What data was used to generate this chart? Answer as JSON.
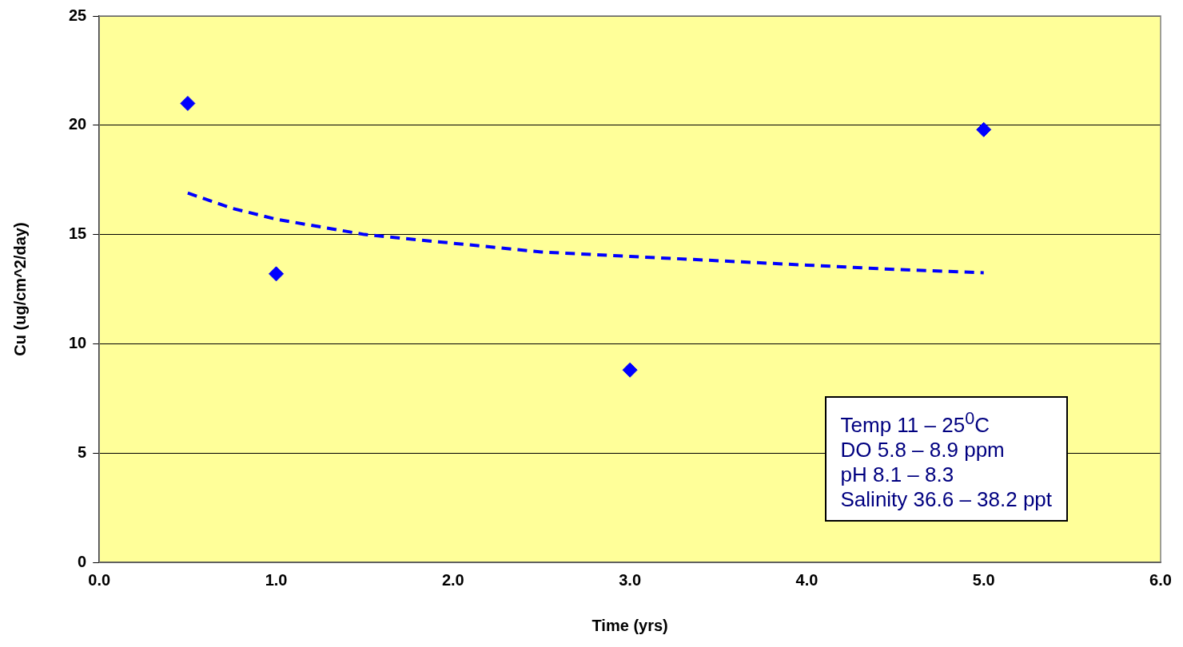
{
  "chart_data": {
    "type": "scatter",
    "xlabel": "Time (yrs)",
    "ylabel": "Cu (ug/cm^2/day)",
    "x": [
      0.5,
      1.0,
      3.0,
      5.0
    ],
    "series": [
      {
        "color": "#0000ff",
        "marker": "diamond",
        "values": [
          21.0,
          13.2,
          8.8,
          19.8
        ]
      },
      {
        "type": "line",
        "color": "#0000ff",
        "line_style": "dashed",
        "marker": "none",
        "x": [
          0.5,
          0.75,
          1.0,
          1.5,
          2.0,
          2.5,
          3.0,
          3.5,
          4.0,
          4.5,
          5.0
        ],
        "values": [
          16.9,
          16.2,
          15.7,
          15.0,
          14.6,
          14.2,
          14.0,
          13.8,
          13.6,
          13.4,
          13.25
        ]
      }
    ],
    "xlim": [
      0,
      6
    ],
    "xticks": [
      {
        "value": 0,
        "label": "0.0"
      },
      {
        "value": 1,
        "label": "1.0"
      },
      {
        "value": 2,
        "label": "2.0"
      },
      {
        "value": 3,
        "label": "3.0"
      },
      {
        "value": 4,
        "label": "4.0"
      },
      {
        "value": 5,
        "label": "5.0"
      },
      {
        "value": 6,
        "label": "6.0"
      }
    ],
    "ylim": [
      0,
      25
    ],
    "yticks": [
      0,
      5,
      10,
      15,
      20,
      25
    ],
    "grid": "y",
    "legend": false,
    "annotations": [
      "Temp 11 – 25$^{0}$C",
      "DO 5.8 – 8.9 ppm",
      "pH 8.1 – 8.3",
      "Salinity 36.6 – 38.2 ppt"
    ]
  }
}
